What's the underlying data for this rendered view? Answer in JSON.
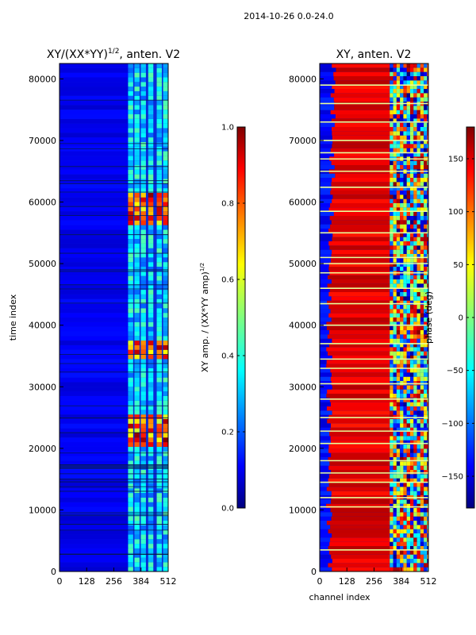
{
  "figure_title": "2014-10-26 0.0-24.0",
  "colors": {
    "jet": [
      "#00007f",
      "#0000ff",
      "#007fff",
      "#00ffff",
      "#7fff7f",
      "#ffff00",
      "#ff7f00",
      "#ff0000",
      "#7f0000"
    ],
    "panel_left_base": "#0a2ad8",
    "panel_right_low": "#0b1fb8",
    "panel_right_high": "#d81a08",
    "row_highlight": "#e8ff9a",
    "row_dark": "#06184f"
  },
  "chart_data": [
    {
      "type": "heatmap",
      "title_main": "XY/(XX*YY)",
      "title_sup": "1/2",
      "title_tail": ", anten. V2",
      "ylabel": "time index",
      "xlabel": "",
      "xlim": [
        0,
        512
      ],
      "ylim": [
        0,
        82500
      ],
      "xticks": [
        0,
        128,
        256,
        384,
        512
      ],
      "xtick_labels": [
        "0",
        "128",
        "256",
        "384",
        "512"
      ],
      "yticks": [
        0,
        10000,
        20000,
        30000,
        40000,
        50000,
        60000,
        70000,
        80000
      ],
      "ytick_labels": [
        "0",
        "10000",
        "20000",
        "30000",
        "40000",
        "50000",
        "60000",
        "70000",
        "80000"
      ],
      "active_channel_range": [
        330,
        512
      ],
      "channel_columns": [
        335,
        365,
        395,
        430,
        470,
        500
      ],
      "high_amplitude_times": [
        24000,
        22000,
        36000,
        58000,
        60000
      ],
      "colorbar": {
        "label_main": "XY amp. / (XX*YY amp)",
        "label_sup": "1/2",
        "ticks": [
          0.0,
          0.2,
          0.4,
          0.6,
          0.8,
          1.0
        ],
        "tick_labels": [
          "0.0",
          "0.2",
          "0.4",
          "0.6",
          "0.8",
          "1.0"
        ],
        "range": [
          0.0,
          1.0
        ]
      }
    },
    {
      "type": "heatmap",
      "title_main": "XY, anten. V2",
      "title_sup": "",
      "title_tail": "",
      "ylabel": "",
      "xlabel": "channel index",
      "xlim": [
        0,
        512
      ],
      "ylim": [
        0,
        82500
      ],
      "xticks": [
        0,
        128,
        256,
        384,
        512
      ],
      "xtick_labels": [
        "0",
        "128",
        "256",
        "384",
        "512"
      ],
      "yticks": [
        0,
        10000,
        20000,
        30000,
        40000,
        50000,
        60000,
        70000,
        80000
      ],
      "ytick_labels": [
        "0",
        "10000",
        "20000",
        "30000",
        "40000",
        "50000",
        "60000",
        "70000",
        "80000"
      ],
      "highlight_rows": [
        3500,
        10500,
        12000,
        14500,
        16000,
        18000,
        20800,
        22800,
        25000,
        28000,
        30500,
        33000,
        34500,
        37000,
        40000,
        43500,
        46000,
        48500,
        50000,
        51000,
        55000,
        58500,
        62400,
        65000,
        67000,
        68000,
        70000,
        73000,
        76000,
        79000
      ],
      "colorbar": {
        "label_main": "phase (deg)",
        "label_sup": "",
        "ticks": [
          -150,
          -100,
          -50,
          0,
          50,
          100,
          150
        ],
        "tick_labels": [
          "−150",
          "−100",
          "−50",
          "0",
          "50",
          "100",
          "150"
        ],
        "range": [
          -180,
          180
        ]
      }
    }
  ]
}
